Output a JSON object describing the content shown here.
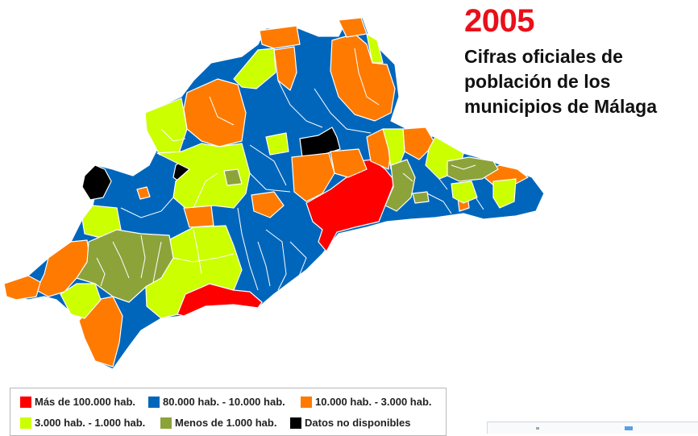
{
  "header": {
    "year": "2005",
    "subtitle_lines": [
      "Cifras oficiales de",
      "población de los",
      "municipios de Málaga"
    ]
  },
  "colors": {
    "red": "#ff0000",
    "blue": "#0066bb",
    "orange": "#ff7a00",
    "lime": "#ccff00",
    "olive": "#8ca33a",
    "black": "#000000",
    "border": "#ffffff"
  },
  "legend": {
    "items": [
      {
        "label": "Más de 100.000 hab.",
        "color": "#ff0000"
      },
      {
        "label": "80.000 hab. - 10.000 hab.",
        "color": "#0066bb"
      },
      {
        "label": "10.000 hab. - 3.000 hab.",
        "color": "#ff7a00"
      },
      {
        "label": "3.000 hab. - 1.000 hab.",
        "color": "#ccff00"
      },
      {
        "label": "Menos de 1.000 hab.",
        "color": "#8ca33a"
      },
      {
        "label": "Datos no disponibles",
        "color": "#000000"
      }
    ]
  }
}
